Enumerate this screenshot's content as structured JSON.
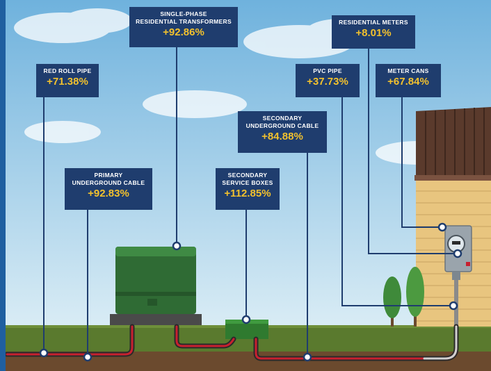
{
  "colors": {
    "sky_top": "#6fb2dd",
    "sky_bottom": "#d9ecf5",
    "grass": "#5a7a2e",
    "soil": "#6b4a2e",
    "callout_bg": "#1f3d6e",
    "value_text": "#f2c12e",
    "cable_red": "#c8202f",
    "cable_dark": "#2a2a2a",
    "transformer_green": "#2f6b34",
    "house_siding": "#e8c57f",
    "roof_brown": "#5a3a2c",
    "edge_bar": "#1f5fa0"
  },
  "icons": [
    "transformer-icon",
    "service-box-icon",
    "meter-icon",
    "house-icon",
    "tree-icon",
    "cloud-icon"
  ],
  "callouts": [
    {
      "id": "red-roll-pipe",
      "label": "RED ROLL PIPE",
      "value": "+71.38%"
    },
    {
      "id": "primary-underground-cable",
      "label": "PRIMARY\nUNDERGROUND CABLE",
      "value": "+92.83%"
    },
    {
      "id": "single-phase-transformers",
      "label": "SINGLE-PHASE\nRESIDENTIAL TRANSFORMERS",
      "value": "+92.86%"
    },
    {
      "id": "secondary-service-boxes",
      "label": "SECONDARY\nSERVICE BOXES",
      "value": "+112.85%"
    },
    {
      "id": "secondary-underground-cable",
      "label": "SECONDARY\nUNDERGROUND CABLE",
      "value": "+84.88%"
    },
    {
      "id": "pvc-pipe",
      "label": "PVC PIPE",
      "value": "+37.73%"
    },
    {
      "id": "residential-meters",
      "label": "RESIDENTIAL METERS",
      "value": "+8.01%"
    },
    {
      "id": "meter-cans",
      "label": "METER CANS",
      "value": "+67.84%"
    }
  ]
}
